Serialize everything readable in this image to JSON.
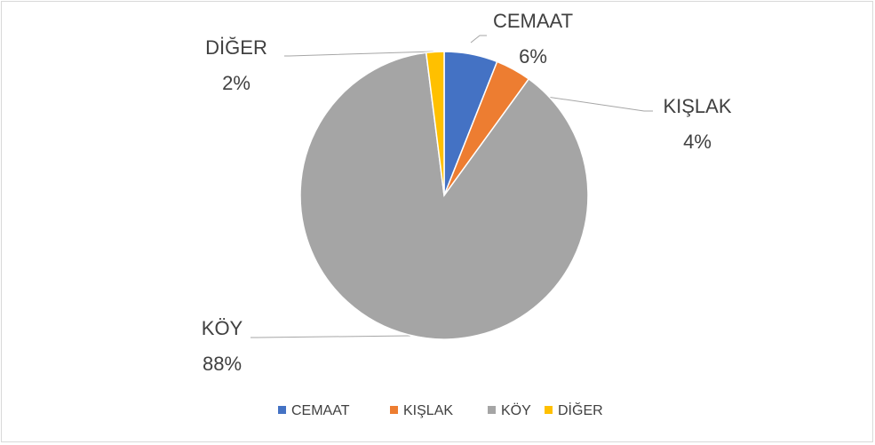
{
  "chart_data": {
    "type": "pie",
    "categories": [
      "CEMAAT",
      "KIŞLAK",
      "KÖY",
      "DİĞER"
    ],
    "values": [
      6,
      4,
      88,
      2
    ],
    "value_labels": [
      "6%",
      "4%",
      "88%",
      "2%"
    ],
    "colors": [
      "#4472c4",
      "#ed7d31",
      "#a5a5a5",
      "#ffc000"
    ],
    "legend": "bottom"
  }
}
